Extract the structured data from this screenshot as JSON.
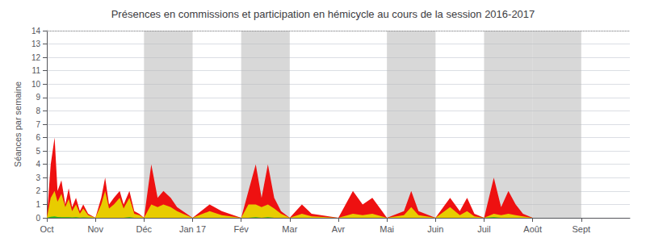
{
  "chart_data": {
    "type": "area",
    "title": "Présences en commissions et participation en hémicycle au cours de la session 2016-2017",
    "ylabel": "Séances par semaine",
    "x": [
      0,
      0.08,
      0.16,
      0.22,
      0.3,
      0.38,
      0.45,
      0.52,
      0.6,
      0.68,
      0.75,
      0.85,
      1,
      1,
      1.12,
      1.2,
      1.28,
      1.38,
      1.5,
      1.58,
      1.7,
      1.8,
      1.9,
      2,
      2,
      2.15,
      2.28,
      2.4,
      2.55,
      2.68,
      2.8,
      3,
      3,
      3.35,
      3.6,
      4,
      4,
      4.15,
      4.3,
      4.42,
      4.55,
      4.68,
      4.82,
      5,
      5,
      5.25,
      5.45,
      6,
      6,
      6.3,
      6.5,
      6.7,
      7,
      7,
      7.35,
      7.5,
      7.65,
      8,
      8,
      8.3,
      8.5,
      8.65,
      8.8,
      9,
      9,
      9.2,
      9.35,
      9.5,
      9.65,
      9.8,
      10,
      10,
      11,
      11,
      12
    ],
    "xlim": [
      0,
      12
    ],
    "xticks": [
      {
        "value": 0,
        "label": "Oct"
      },
      {
        "value": 1,
        "label": "Nov"
      },
      {
        "value": 2,
        "label": "Déc"
      },
      {
        "value": 3,
        "label": "Jan 17"
      },
      {
        "value": 4,
        "label": "Fév"
      },
      {
        "value": 5,
        "label": "Mar"
      },
      {
        "value": 6,
        "label": "Avr"
      },
      {
        "value": 7,
        "label": "Mai"
      },
      {
        "value": 8,
        "label": "Juin"
      },
      {
        "value": 9,
        "label": "Juil"
      },
      {
        "value": 10,
        "label": "Août"
      },
      {
        "value": 11,
        "label": "Sept"
      }
    ],
    "ylim": [
      0,
      14
    ],
    "yticks": [
      0,
      1,
      2,
      3,
      4,
      5,
      6,
      7,
      8,
      9,
      10,
      11,
      12,
      13,
      14
    ],
    "grid": true,
    "bands": [
      [
        2,
        3
      ],
      [
        4,
        5
      ],
      [
        7,
        8
      ],
      [
        9,
        10
      ],
      [
        10,
        11
      ]
    ],
    "series": [
      {
        "color": "#ee1111",
        "values": [
          0,
          4,
          6,
          2,
          2.8,
          1,
          2.2,
          0.8,
          1.5,
          0.5,
          1.0,
          0.3,
          0,
          0,
          1.5,
          3,
          1,
          1.5,
          2,
          1,
          2,
          0.5,
          0.3,
          0,
          0,
          4,
          1.5,
          2,
          1.5,
          0.8,
          0.5,
          0,
          0,
          1,
          0.5,
          0,
          0,
          2,
          4,
          1.5,
          4,
          1.5,
          0.5,
          0,
          0,
          1,
          0.3,
          0,
          0,
          2,
          1,
          1.5,
          0,
          0,
          0.5,
          2,
          0.5,
          0,
          0,
          1.5,
          0.5,
          1.5,
          0.3,
          0,
          0,
          3,
          0.8,
          2,
          1,
          0.3,
          0,
          0,
          0,
          0,
          0
        ]
      },
      {
        "color": "#e8cc00",
        "values": [
          0,
          1.5,
          2,
          1.2,
          1.8,
          0.8,
          1.4,
          0.5,
          1.0,
          0.3,
          0.7,
          0.2,
          0,
          0,
          1.0,
          2,
          0.7,
          1.0,
          1.5,
          0.7,
          1.5,
          0.3,
          0.2,
          0,
          0,
          1,
          0.8,
          1,
          0.8,
          0.5,
          0.3,
          0,
          0,
          0.5,
          0.2,
          0,
          0,
          1,
          1,
          0.8,
          1,
          0.7,
          0.3,
          0,
          0,
          0.3,
          0.1,
          0,
          0,
          0.3,
          0.2,
          0.3,
          0,
          0,
          0.2,
          0.8,
          0.2,
          0,
          0,
          0.8,
          0.2,
          0.5,
          0.1,
          0,
          0,
          0.3,
          0.2,
          0.3,
          0.2,
          0.1,
          0,
          0,
          0,
          0,
          0
        ]
      },
      {
        "color": "#22bb22",
        "values": [
          0,
          0.08,
          0.1,
          0.06,
          0.05,
          0.04,
          0.05,
          0.03,
          0.04,
          0.02,
          0.03,
          0.01,
          0,
          0,
          0,
          0,
          0,
          0,
          0,
          0,
          0.05,
          0,
          0,
          0,
          0,
          0,
          0,
          0,
          0,
          0,
          0,
          0,
          0,
          0,
          0,
          0,
          0,
          0,
          0.05,
          0,
          0.05,
          0,
          0,
          0,
          0,
          0,
          0,
          0,
          0,
          0,
          0,
          0,
          0,
          0,
          0,
          0,
          0,
          0,
          0,
          0,
          0,
          0,
          0,
          0,
          0,
          0.05,
          0,
          0,
          0,
          0,
          0,
          0,
          0,
          0,
          0
        ]
      }
    ]
  }
}
